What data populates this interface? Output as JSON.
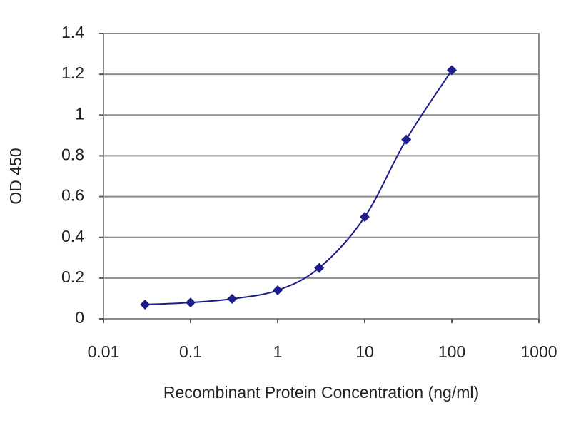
{
  "chart_data": {
    "type": "line",
    "x_label": "Recombinant Protein Concentration (ng/ml)",
    "y_label": "OD 450",
    "x": [
      0.03,
      0.1,
      0.3,
      1,
      3,
      10,
      30,
      100
    ],
    "values": [
      0.07,
      0.08,
      0.098,
      0.14,
      0.25,
      0.5,
      0.88,
      1.22
    ],
    "color": "#1c1c8a",
    "marker": "diamond",
    "xscale": "log",
    "xlim": [
      0.01,
      1000
    ],
    "xticks": [
      0.01,
      0.1,
      1,
      10,
      100,
      1000
    ],
    "ylim": [
      0,
      1.4
    ],
    "yticks": [
      0,
      0.2,
      0.4,
      0.6,
      0.8,
      1,
      1.2,
      1.4
    ],
    "grid": true
  }
}
